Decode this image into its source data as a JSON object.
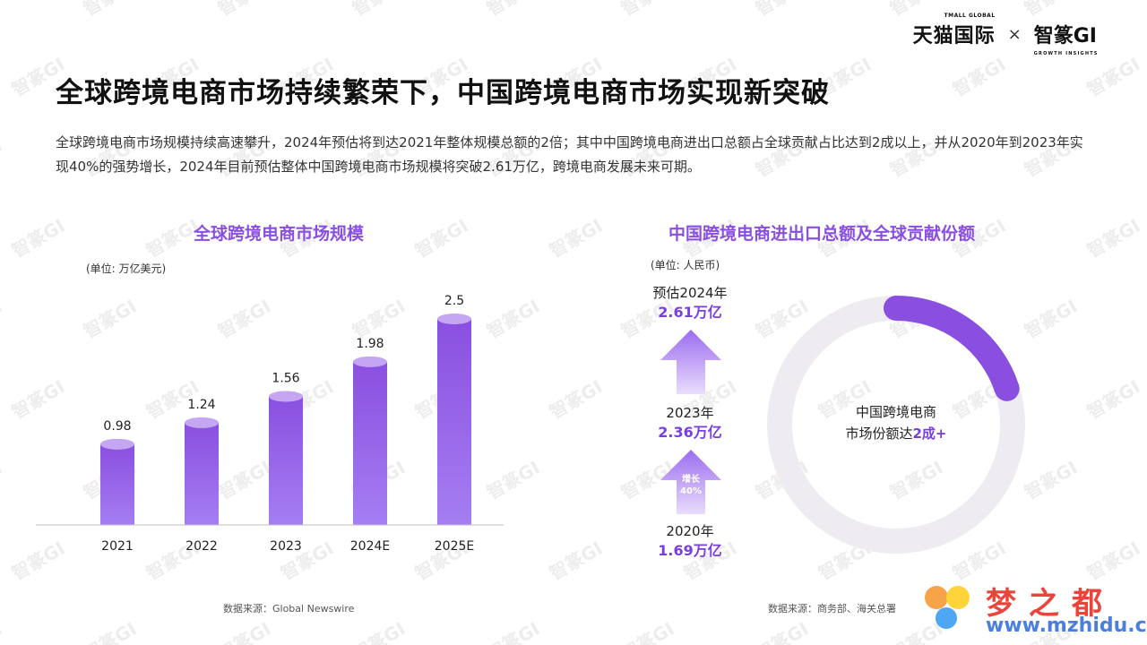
{
  "header": {
    "logo_left": "天猫国际",
    "logo_left_sub": "TMALL GLOBAL",
    "separator": "×",
    "logo_right": "智篆GI",
    "logo_right_sub": "GROWTH INSIGHTS"
  },
  "title": "全球跨境电商市场持续繁荣下，中国跨境电商市场实现新突破",
  "intro": "全球跨境电商市场规模持续高速攀升，2024年预估将到达2021年整体规模总额的2倍；其中中国跨境电商进出口总额占全球贡献占比达到2成以上，并从2020年到2023年实现40%的强势增长，2024年目前预估整体中国跨境电商市场规模将突破2.61万亿，跨境电商发展未来可期。",
  "watermark_text": "智篆GI",
  "left_section": {
    "title": "全球跨境电商市场规模",
    "unit": "(单位: 万亿美元)",
    "source": "数据来源：Global Newswire"
  },
  "chart_data": {
    "type": "bar",
    "categories": [
      "2021",
      "2022",
      "2023",
      "2024E",
      "2025E"
    ],
    "values": [
      0.98,
      1.24,
      1.56,
      1.98,
      2.5
    ],
    "title": "全球跨境电商市场规模",
    "xlabel": "",
    "ylabel": "(单位: 万亿美元)",
    "ylim": [
      0,
      2.5
    ],
    "grid": false,
    "bar_color": "#8a4fe0",
    "bar_top_color": "#c5a6f3"
  },
  "right_section": {
    "title": "中国跨境电商进出口总额及全球贡献份额",
    "unit": "(单位: 人民币)",
    "years": [
      {
        "label": "预估2024年",
        "value": "2.61万亿"
      },
      {
        "label": "2023年",
        "value": "2.36万亿"
      },
      {
        "label": "2020年",
        "value": "1.69万亿"
      }
    ],
    "growth_label": "增长",
    "growth_value": "40%",
    "donut_line1": "中国跨境电商",
    "donut_line2": "市场份额达",
    "donut_value": "2成+",
    "donut_share": 0.2,
    "source": "数据来源：商务部、海关总署"
  },
  "brand_corner": {
    "name": "梦之都",
    "url": "www.mzhidu.com"
  },
  "colors": {
    "accent": "#8a4fe0",
    "accent_dark": "#7a3ee0",
    "ring": "#eeecf0"
  }
}
